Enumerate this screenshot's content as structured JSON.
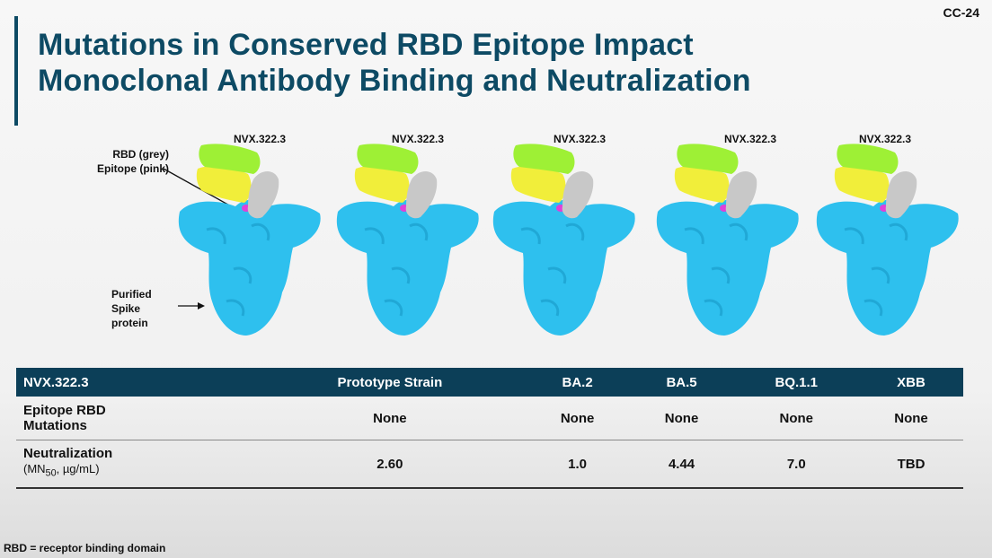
{
  "slide_number": "CC-24",
  "title": {
    "line1": "Mutations in Conserved RBD Epitope Impact",
    "line2": "Monoclonal Antibody Binding and Neutralization"
  },
  "structures": [
    {
      "label": "NVX.322.3"
    },
    {
      "label": "NVX.322.3"
    },
    {
      "label": "NVX.322.3"
    },
    {
      "label": "NVX.322.3"
    },
    {
      "label": "NVX.322.3"
    }
  ],
  "annotations": {
    "rbd_line1": "RBD (grey)",
    "rbd_line2": "Epitope (pink)",
    "spike_line1": "Purified",
    "spike_line2": "Spike",
    "spike_line3": "protein"
  },
  "colors": {
    "spike": "#2ec0ee",
    "rbd": "#c8c8c8",
    "epitope": "#e040d8",
    "antibody_heavy": "#9ef035",
    "antibody_light": "#f1ee3a",
    "header": "#0c3f58",
    "title": "#0d4a64"
  },
  "table": {
    "headers": [
      "NVX.322.3",
      "Prototype Strain",
      "BA.2",
      "BA.5",
      "BQ.1.1",
      "XBB"
    ],
    "row1": {
      "label_line1": "Epitope RBD",
      "label_line2": "Mutations",
      "values": [
        "None",
        "None",
        "None",
        "None",
        "None"
      ]
    },
    "row2": {
      "label_line1": "Neutralization",
      "label_unit_pre": "(MN",
      "label_unit_sub": "50",
      "label_unit_post": ", µg/mL)",
      "values": [
        "2.60",
        "1.0",
        "4.44",
        "7.0",
        "TBD"
      ]
    }
  },
  "footnote": "RBD = receptor binding domain"
}
